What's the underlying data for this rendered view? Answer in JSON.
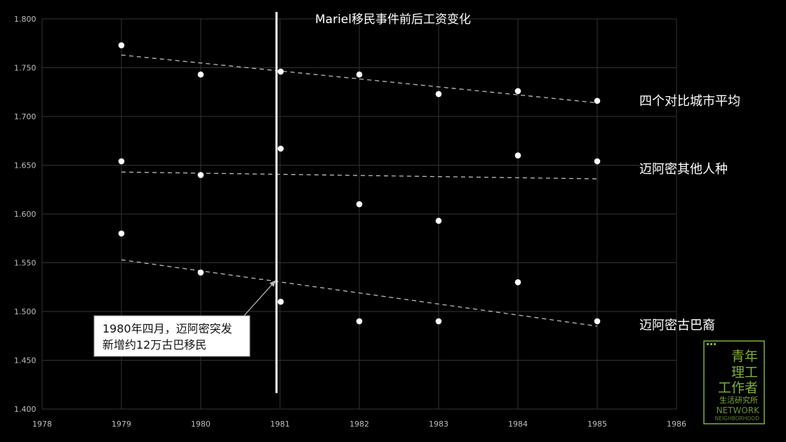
{
  "chart_data": {
    "type": "scatter",
    "title": "Mariel移民事件前后工资变化",
    "xlabel": "",
    "ylabel": "",
    "xlim": [
      1978,
      1986
    ],
    "ylim": [
      1.4,
      1.8
    ],
    "x_ticks": [
      "1978",
      "1979",
      "1980",
      "1981",
      "1982",
      "1983",
      "1984",
      "1985",
      "1986"
    ],
    "y_ticks": [
      "1.400",
      "1.450",
      "1.500",
      "1.550",
      "1.600",
      "1.650",
      "1.700",
      "1.750",
      "1.800"
    ],
    "grid": true,
    "series": [
      {
        "name": "四个对比城市平均",
        "x": [
          1979,
          1980,
          1981,
          1982,
          1983,
          1984,
          1985
        ],
        "y": [
          1.773,
          1.743,
          1.746,
          1.743,
          1.723,
          1.726,
          1.716
        ],
        "trend": [
          [
            1979,
            1.763
          ],
          [
            1985,
            1.714
          ]
        ]
      },
      {
        "name": "迈阿密其他人种",
        "x": [
          1979,
          1980,
          1981,
          1982,
          1983,
          1984,
          1985
        ],
        "y": [
          1.654,
          1.64,
          1.667,
          1.61,
          1.593,
          1.66,
          1.654
        ],
        "trend": [
          [
            1979,
            1.643
          ],
          [
            1985,
            1.636
          ]
        ]
      },
      {
        "name": "迈阿密古巴裔",
        "x": [
          1979,
          1980,
          1981,
          1982,
          1983,
          1984,
          1985
        ],
        "y": [
          1.58,
          1.54,
          1.51,
          1.49,
          1.49,
          1.53,
          1.49
        ],
        "trend": [
          [
            1979,
            1.553
          ],
          [
            1985,
            1.485
          ]
        ]
      }
    ],
    "event_line": {
      "x": 1981,
      "y_from": 1.42,
      "y_to": 1.8
    },
    "annotation": {
      "lines": [
        "1980年四月，迈阿密突发",
        "新增约12万古巴移民"
      ],
      "points_to": [
        1981,
        1.532
      ]
    },
    "colors": {
      "background": "#000000",
      "points": "#ffffff",
      "trend": "#bbbbbb",
      "grid": "#333333",
      "logo": "#7fae3a"
    }
  },
  "logo": {
    "line1": "青年",
    "line2": "理工",
    "line3": "工作者",
    "line4": "生活研究所",
    "line5": "NETWORK",
    "line6": "NEIGHBORHOOD"
  }
}
